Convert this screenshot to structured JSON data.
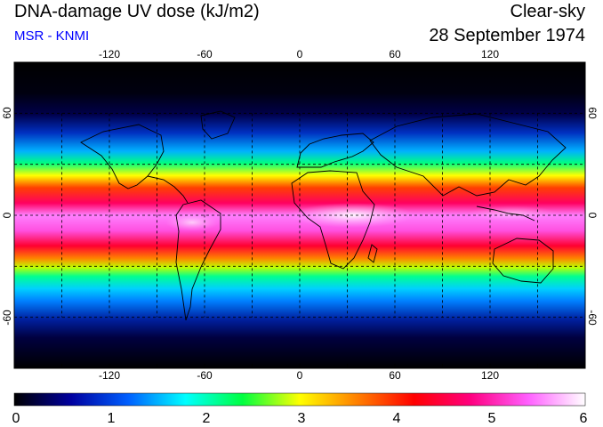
{
  "header": {
    "title": "DNA-damage UV dose (kJ/m2)",
    "subtitle": "MSR - KNMI",
    "sky_condition": "Clear-sky",
    "date": "28 September 1974"
  },
  "map": {
    "projection": "equirectangular",
    "lon_range": [
      -180,
      180
    ],
    "lat_range": [
      -90,
      90
    ],
    "lon_ticks": [
      "-120",
      "-60",
      "0",
      "60",
      "120"
    ],
    "lat_ticks": [
      "60",
      "0",
      "-60"
    ],
    "grid_lon": [
      -150,
      -120,
      -90,
      -60,
      -30,
      0,
      30,
      60,
      90,
      120,
      150
    ],
    "grid_lat": [
      -60,
      -30,
      0,
      30,
      60
    ],
    "grid_style": "dashed",
    "background": "#000000"
  },
  "colorbar": {
    "min": 0,
    "max": 6,
    "tick_labels": [
      "0",
      "1",
      "2",
      "3",
      "4",
      "5",
      "6"
    ],
    "colors": [
      "#000000",
      "#0000a0",
      "#0060ff",
      "#00ffff",
      "#00ff40",
      "#ffff00",
      "#ff8000",
      "#ff0000",
      "#ff0080",
      "#ff60ff",
      "#ffffff"
    ]
  }
}
